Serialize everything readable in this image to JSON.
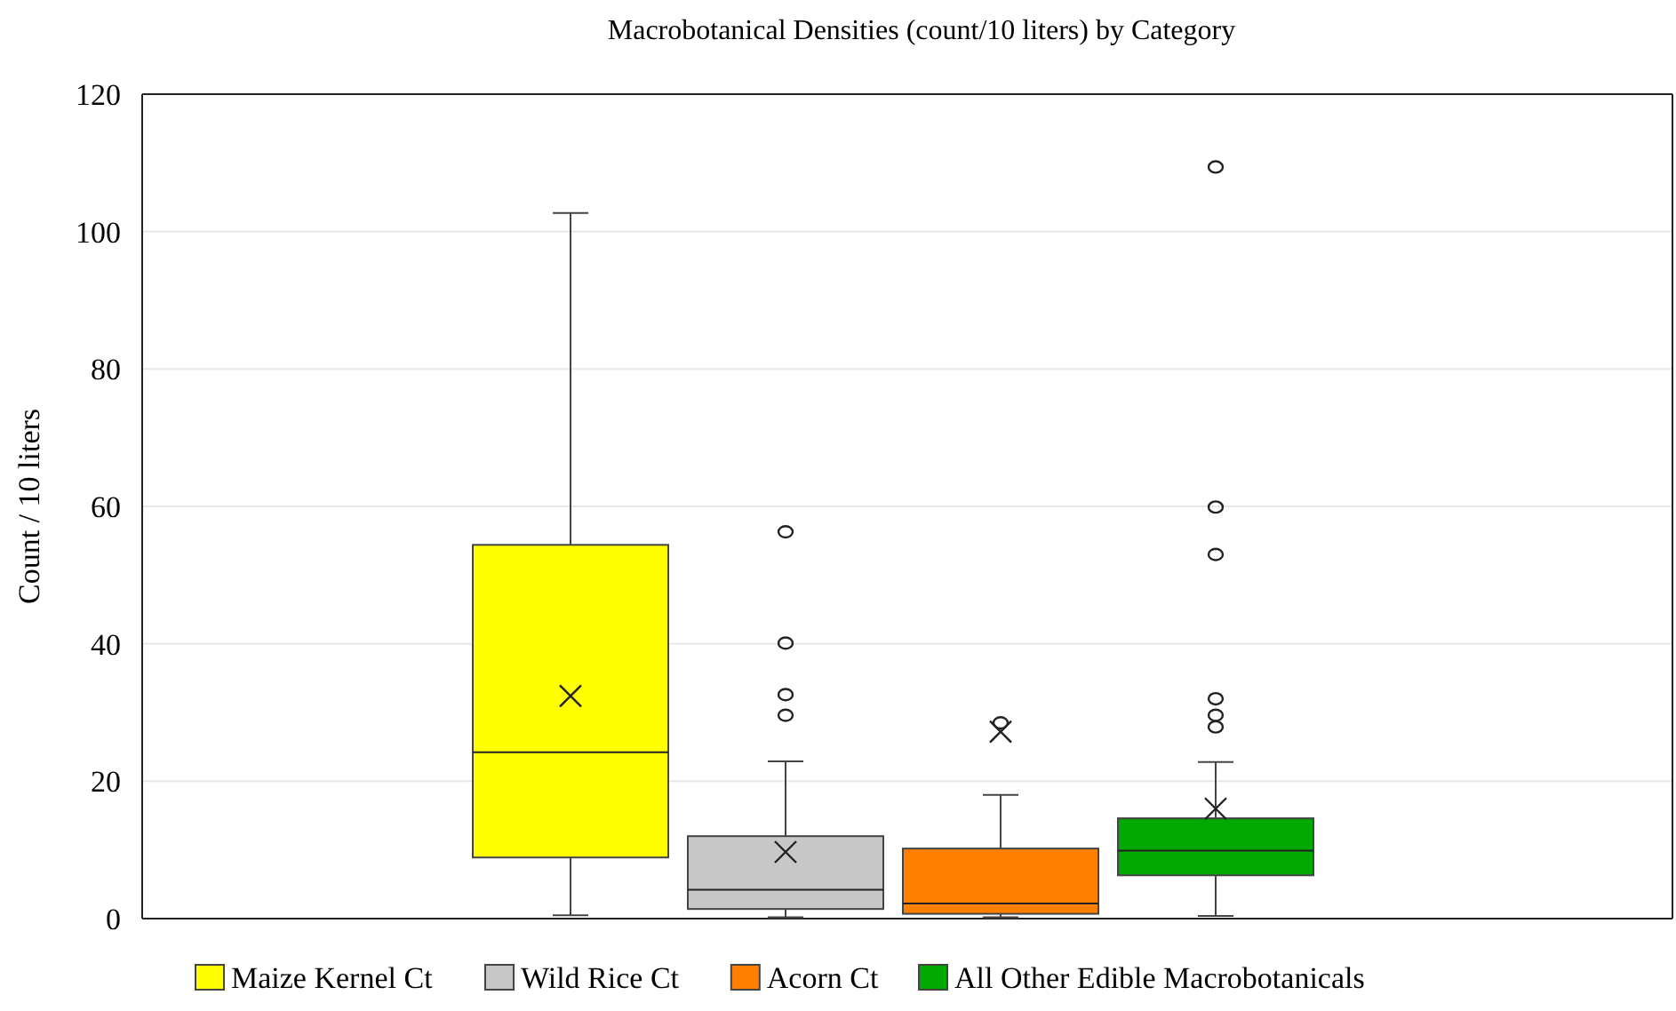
{
  "chart_data": {
    "type": "box",
    "title": "Macrobotanical Densities (count/10 liters) by Category",
    "ylabel": "Count / 10 liters",
    "categories": [
      null
    ],
    "ylim": [
      0,
      120
    ],
    "yticks": [
      0,
      20,
      40,
      60,
      80,
      100,
      120
    ],
    "grid": "y",
    "legend": "bottom",
    "series": [
      {
        "name": "Maize Kernel Ct",
        "color": "#ffff00",
        "boxes": [
          {
            "low": 0.5,
            "q1": 8.9,
            "median": 24.2,
            "q3": 54.4,
            "high": 102.7,
            "mean": 32.4
          }
        ]
      },
      {
        "name": "Wild Rice Ct",
        "color": "#c8c8c8",
        "boxes": [
          {
            "low": 0.2,
            "q1": 1.4,
            "median": 4.2,
            "q3": 12.0,
            "high": 22.9,
            "mean": 9.7,
            "outliers": [
              56.3,
              40.1,
              32.6,
              29.6
            ]
          }
        ]
      },
      {
        "name": "Acorn Ct",
        "color": "#ff8000",
        "boxes": [
          {
            "low": 0.2,
            "q1": 0.7,
            "median": 2.2,
            "q3": 10.2,
            "high": 18.0,
            "mean": 27.2,
            "outliers": [
              28.5
            ]
          }
        ]
      },
      {
        "name": "All Other Edible Macrobotanicals",
        "color": "#00a800",
        "boxes": [
          {
            "low": 0.4,
            "q1": 6.3,
            "median": 9.9,
            "q3": 14.6,
            "high": 22.8,
            "mean": 16.0,
            "outliers": [
              109.4,
              59.9,
              53.0,
              32.0,
              29.6,
              27.9
            ]
          }
        ]
      }
    ]
  }
}
